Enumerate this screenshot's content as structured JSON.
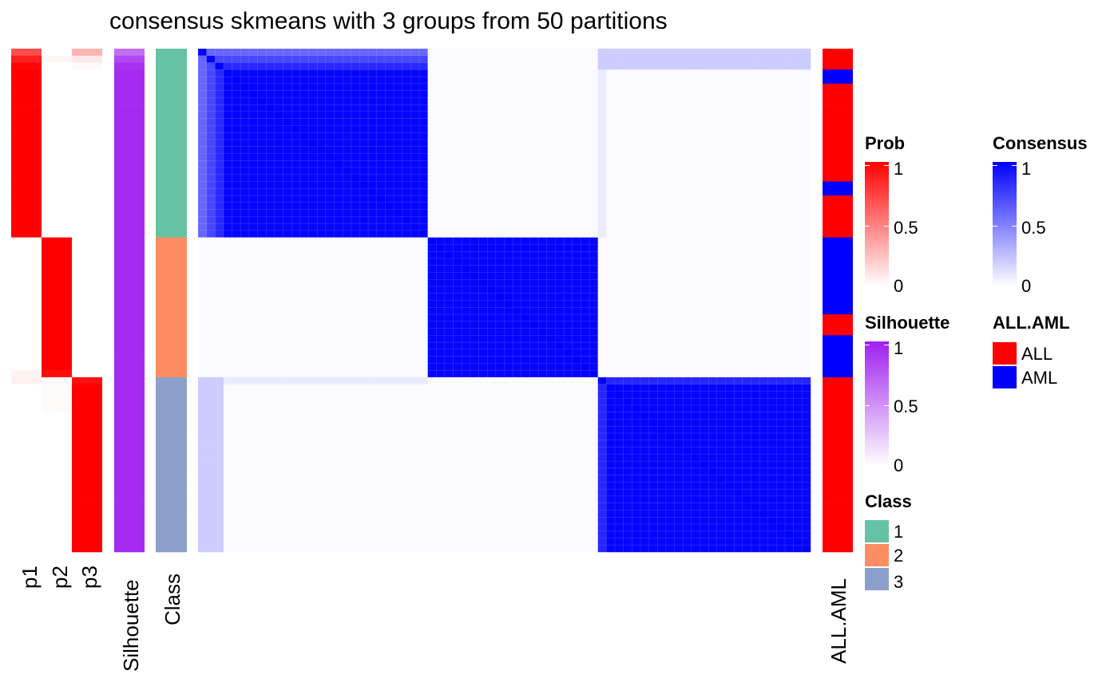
{
  "chart_data": {
    "type": "heatmap",
    "title": "consensus skmeans with 3 groups from 50 partitions",
    "n_samples": 72,
    "columns": {
      "p1": "p1",
      "p2": "p2",
      "p3": "p3",
      "silhouette": "Silhouette",
      "class": "Class",
      "all_aml": "ALL.AML"
    },
    "groups": [
      {
        "class": "1",
        "count": 27
      },
      {
        "class": "2",
        "count": 20
      },
      {
        "class": "3",
        "count": 25
      }
    ],
    "class_colors": {
      "1": "#66C2A5",
      "2": "#FC8D62",
      "3": "#8DA0CB"
    },
    "all_aml_colors": {
      "ALL": "#FF0000",
      "AML": "#0000FF"
    },
    "prob_rows": [
      [
        0.7,
        0.0,
        0.3
      ],
      [
        0.88,
        0.03,
        0.09
      ],
      [
        0.98,
        0.0,
        0.02
      ]
    ],
    "silhouette_rows": [
      0.65,
      0.82,
      0.93
    ],
    "all_aml_sequence": [
      {
        "label": "ALL",
        "count": 3
      },
      {
        "label": "AML",
        "count": 2
      },
      {
        "label": "ALL",
        "count": 14
      },
      {
        "label": "AML",
        "count": 2
      },
      {
        "label": "ALL",
        "count": 6
      },
      {
        "label": "AML",
        "count": 11
      },
      {
        "label": "ALL",
        "count": 3
      },
      {
        "label": "AML",
        "count": 6
      },
      {
        "label": "ALL",
        "count": 25
      }
    ],
    "legends": {
      "prob": {
        "title": "Prob",
        "ticks": [
          "1",
          "0.5",
          "0"
        ],
        "low": "#FFFFFF",
        "high": "#FF0000"
      },
      "consensus": {
        "title": "Consensus",
        "ticks": [
          "1",
          "0.5",
          "0"
        ],
        "low": "#FFFFFF",
        "high": "#0000FF"
      },
      "silhouette": {
        "title": "Silhouette",
        "ticks": [
          "1",
          "0.5",
          "0"
        ],
        "low": "#FFFFFF",
        "high": "#A020F0"
      },
      "all_aml": {
        "title": "ALL.AML",
        "items": [
          "ALL",
          "AML"
        ]
      },
      "class": {
        "title": "Class",
        "items": [
          "1",
          "2",
          "3"
        ]
      }
    }
  }
}
